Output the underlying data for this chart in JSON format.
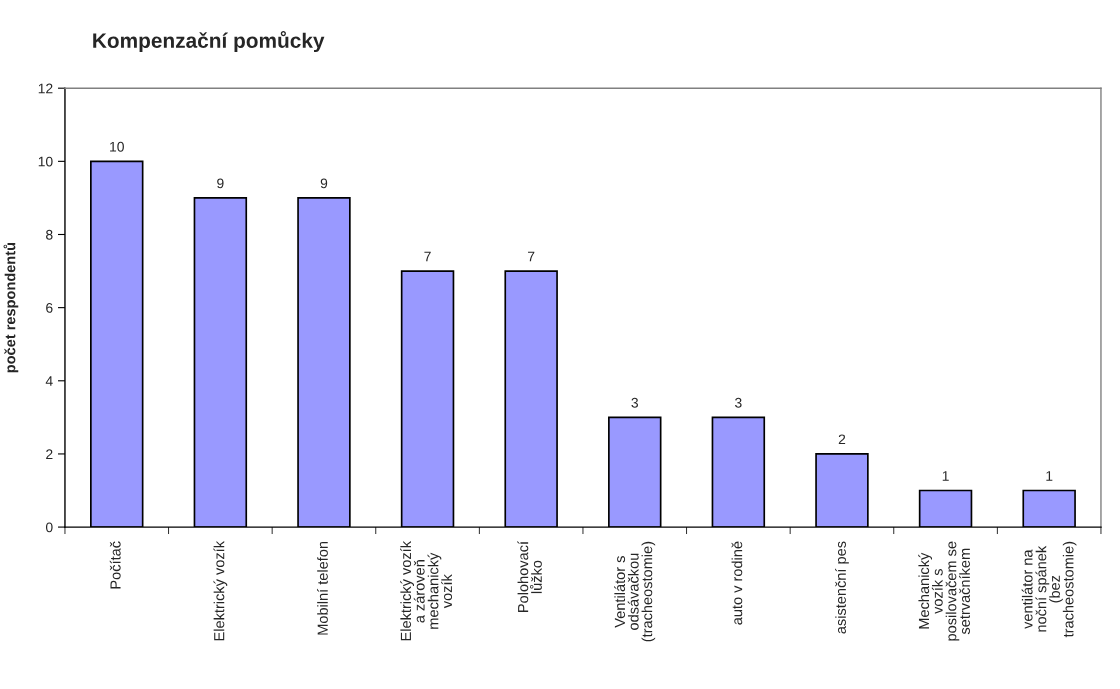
{
  "chart_data": {
    "type": "bar",
    "title": "Kompenzační pomůcky",
    "ylabel": "počet respondentů",
    "categories": [
      "Počítač",
      "Elektrický vozík",
      "Mobilní telefon",
      "Elektrický vozík\na zároveň\nmechanický\nvozík",
      "Polohovací\nlůžko",
      "Ventilátor s\nodsávačkou\n(tracheostomie)",
      "auto v rodině",
      "asistenční pes",
      "Mechanický\nvozík s\nposilovačem se\nsetrvačníkem",
      "ventilátor na\nnoční spánek\n(bez\ntracheostomie)"
    ],
    "values": [
      10,
      9,
      9,
      7,
      7,
      3,
      3,
      2,
      1,
      1
    ],
    "color": "#9999ff",
    "ylim": [
      0,
      12
    ],
    "yticks": [
      0,
      2,
      4,
      6,
      8,
      10,
      12
    ],
    "data_labels": true
  }
}
